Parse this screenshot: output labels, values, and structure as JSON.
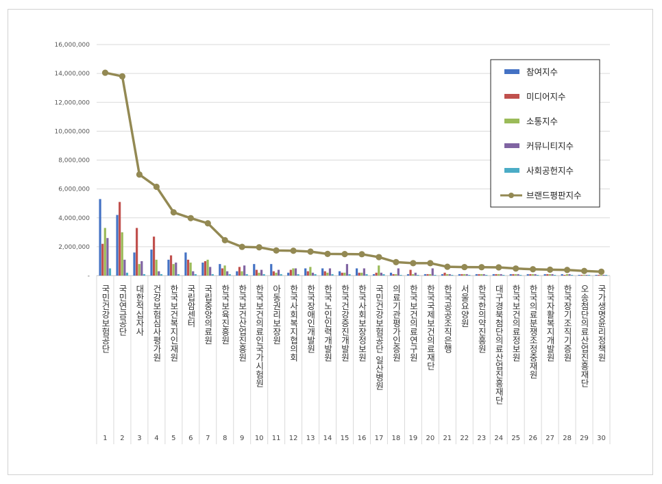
{
  "chart_data": {
    "type": "bar",
    "title": "",
    "xlabel": "",
    "ylabel": "",
    "ylim": [
      0,
      16000000
    ],
    "yticks": [
      "-",
      "2,000,000",
      "4,000,000",
      "6,000,000",
      "8,000,000",
      "10,000,000",
      "12,000,000",
      "14,000,000",
      "16,000,000"
    ],
    "grid": true,
    "legend_position": "top-right",
    "categories": [
      "국민건강보험공단",
      "국민연금공단",
      "대한적십자사",
      "건강보험심사평가원",
      "한국보건복지인재원",
      "국립암센터",
      "국립중앙의료원",
      "한국보육진흥원",
      "한국보건산업진흥원",
      "한국보건의료인국가시험원",
      "아동권리보장원",
      "한국사회복지협의회",
      "한국장애인개발원",
      "한국노인인력개발원",
      "한국건강증진개발원",
      "한국사회보장정보원",
      "국민건강보험공단 일산병원",
      "의료기관평가인증원",
      "한국보건의료연구원",
      "한국국제보건의료재단",
      "한국공공조직은행",
      "서울요양원",
      "한국한의약진흥원",
      "대구경북첨단의료산업진흥재단",
      "한국보건의료정보원",
      "한국의료분쟁조정중재원",
      "한국자활복지개발원",
      "한국장기조직기증원",
      "오송첨단의료산업진흥재단",
      "국가생명윤리정책원"
    ],
    "ranks": [
      "1",
      "2",
      "3",
      "4",
      "5",
      "6",
      "7",
      "8",
      "9",
      "10",
      "11",
      "12",
      "13",
      "14",
      "15",
      "16",
      "17",
      "18",
      "19",
      "20",
      "21",
      "22",
      "23",
      "24",
      "25",
      "26",
      "27",
      "28",
      "29",
      "30"
    ],
    "series": [
      {
        "name": "참여지수",
        "color": "#4472C4",
        "values": [
          5300000,
          4200000,
          1600000,
          1800000,
          1100000,
          1600000,
          900000,
          800000,
          300000,
          800000,
          800000,
          200000,
          500000,
          500000,
          300000,
          500000,
          100000,
          200000,
          100000,
          100000,
          100000,
          100000,
          100000,
          100000,
          100000,
          100000,
          100000,
          100000,
          50000,
          50000
        ]
      },
      {
        "name": "미디어지수",
        "color": "#C0504D",
        "values": [
          2200000,
          5100000,
          3300000,
          2700000,
          1400000,
          1100000,
          1000000,
          500000,
          600000,
          400000,
          300000,
          400000,
          300000,
          300000,
          200000,
          200000,
          200000,
          100000,
          400000,
          100000,
          200000,
          100000,
          100000,
          100000,
          100000,
          100000,
          100000,
          50000,
          50000,
          50000
        ]
      },
      {
        "name": "소통지수",
        "color": "#9BBB59",
        "values": [
          3300000,
          3000000,
          800000,
          1100000,
          800000,
          900000,
          1100000,
          700000,
          300000,
          200000,
          200000,
          500000,
          600000,
          200000,
          200000,
          200000,
          700000,
          100000,
          100000,
          100000,
          100000,
          100000,
          100000,
          100000,
          100000,
          100000,
          100000,
          100000,
          50000,
          50000
        ]
      },
      {
        "name": "커뮤니티지수",
        "color": "#8064A2",
        "values": [
          2600000,
          1100000,
          1000000,
          300000,
          900000,
          300000,
          600000,
          300000,
          700000,
          400000,
          400000,
          500000,
          200000,
          500000,
          800000,
          500000,
          200000,
          500000,
          200000,
          500000,
          100000,
          100000,
          100000,
          100000,
          100000,
          100000,
          100000,
          100000,
          50000,
          50000
        ]
      },
      {
        "name": "사회공헌지수",
        "color": "#4BACC6",
        "values": [
          500000,
          200000,
          100000,
          100000,
          100000,
          100000,
          100000,
          100000,
          100000,
          100000,
          100000,
          100000,
          100000,
          100000,
          100000,
          100000,
          100000,
          50000,
          50000,
          50000,
          50000,
          50000,
          50000,
          50000,
          50000,
          50000,
          50000,
          50000,
          50000,
          50000
        ]
      }
    ],
    "line_series": {
      "name": "브랜드평판지수",
      "color": "#938953",
      "values": [
        14050000,
        13800000,
        7000000,
        6150000,
        4380000,
        3980000,
        3620000,
        2450000,
        1990000,
        1960000,
        1740000,
        1720000,
        1660000,
        1500000,
        1490000,
        1480000,
        1280000,
        930000,
        860000,
        860000,
        610000,
        590000,
        580000,
        570000,
        490000,
        440000,
        410000,
        390000,
        320000,
        270000
      ]
    }
  }
}
